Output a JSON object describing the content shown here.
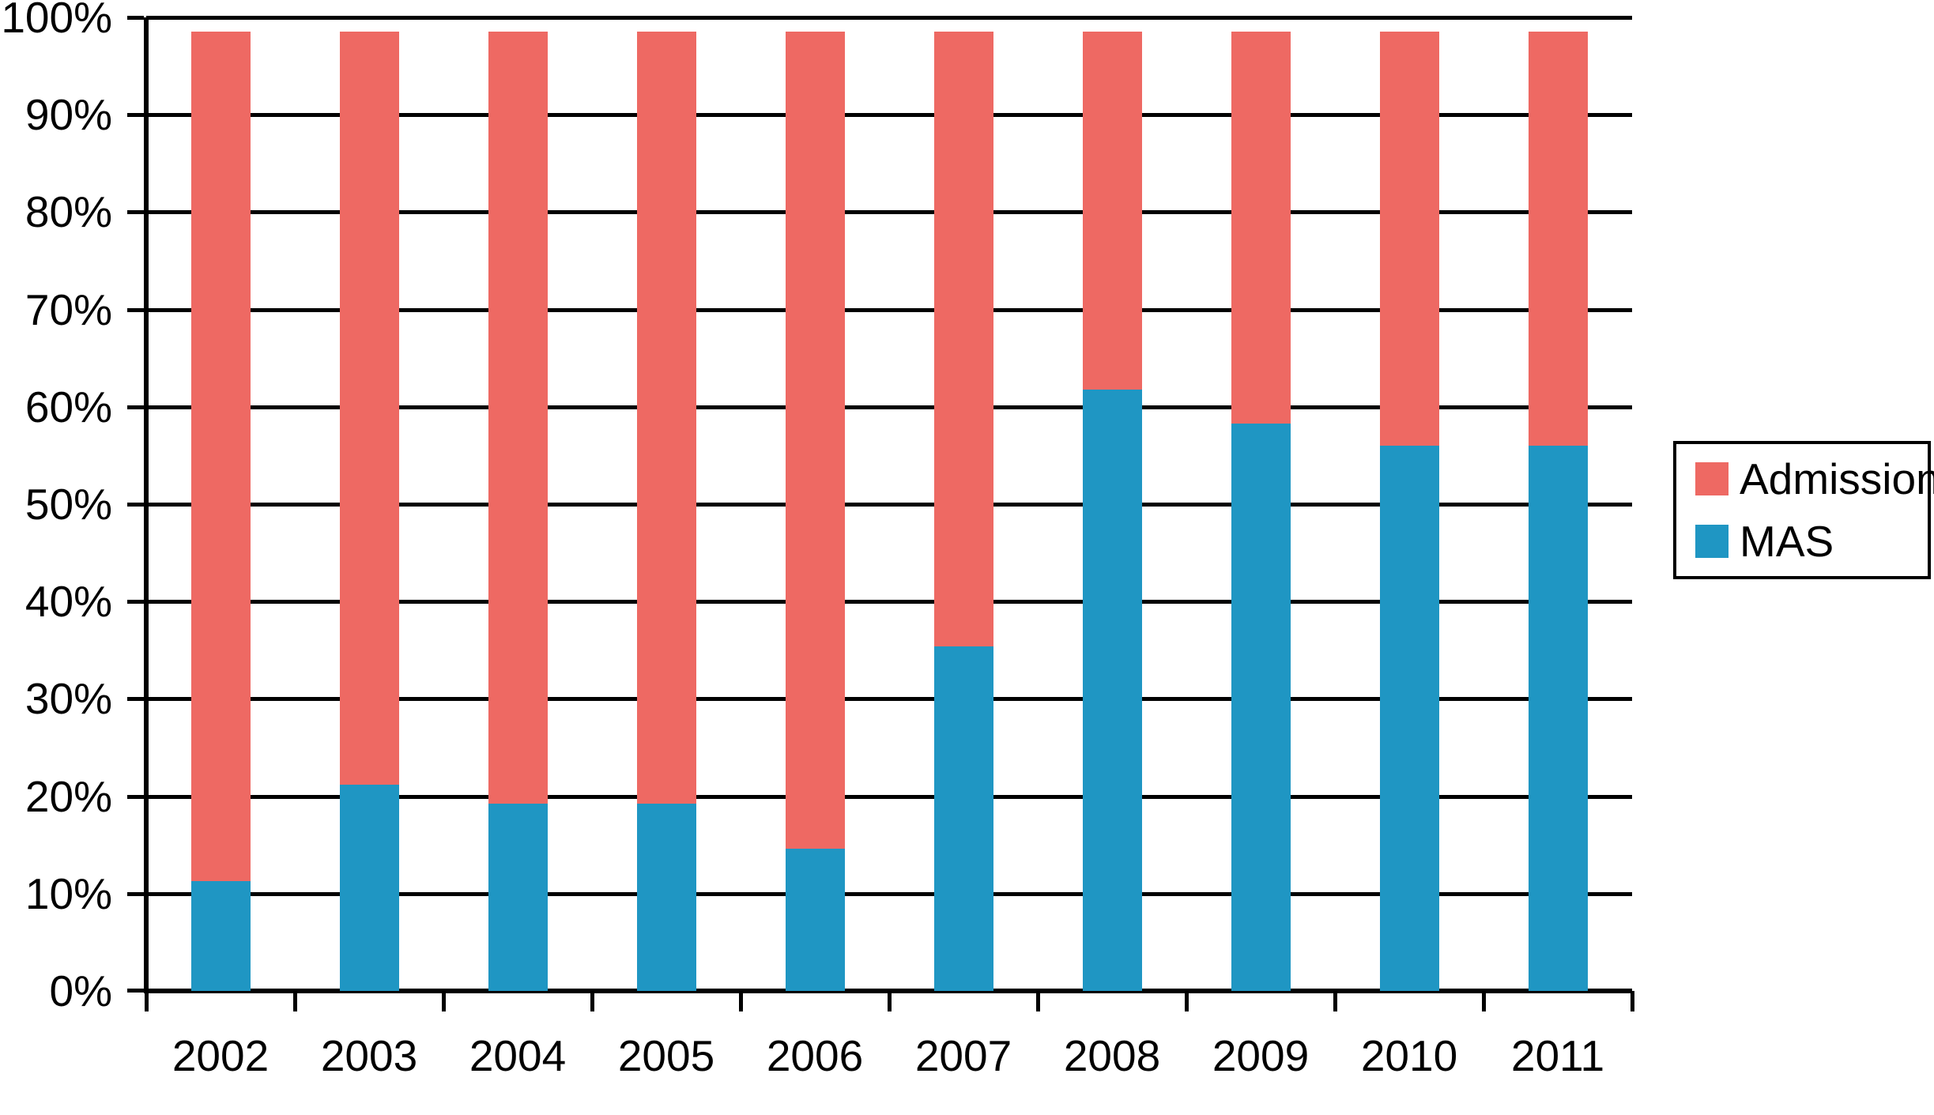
{
  "chart_data": {
    "type": "bar",
    "stacked": true,
    "percent_axis": true,
    "title": "",
    "xlabel": "",
    "ylabel": "",
    "categories": [
      "2002",
      "2003",
      "2004",
      "2005",
      "2006",
      "2007",
      "2008",
      "2009",
      "2010",
      "2011"
    ],
    "series": [
      {
        "name": "Admission",
        "color": "#EE6963",
        "stack_position": "top",
        "values": [
          87.2,
          77.3,
          79.3,
          79.3,
          83.9,
          63.1,
          36.7,
          40.2,
          42.5,
          42.5
        ]
      },
      {
        "name": "MAS",
        "color": "#1F96C3",
        "stack_position": "bottom",
        "values": [
          11.3,
          21.2,
          19.2,
          19.2,
          14.6,
          35.4,
          61.8,
          58.3,
          56.0,
          56.0
        ]
      }
    ],
    "bar_total_percent": 98.5,
    "y_axis": {
      "min": 0,
      "max": 100,
      "tick_step": 10,
      "tick_labels": [
        "0%",
        "10%",
        "20%",
        "30%",
        "40%",
        "50%",
        "60%",
        "70%",
        "80%",
        "90%",
        "100%"
      ]
    },
    "grid": true,
    "grid_color": "#000000",
    "background_color": "#FFFFFF",
    "legend": {
      "position": "right",
      "border": true,
      "entries": [
        {
          "label": "Admission",
          "color": "#EE6963"
        },
        {
          "label": "MAS",
          "color": "#1F96C3"
        }
      ]
    }
  }
}
